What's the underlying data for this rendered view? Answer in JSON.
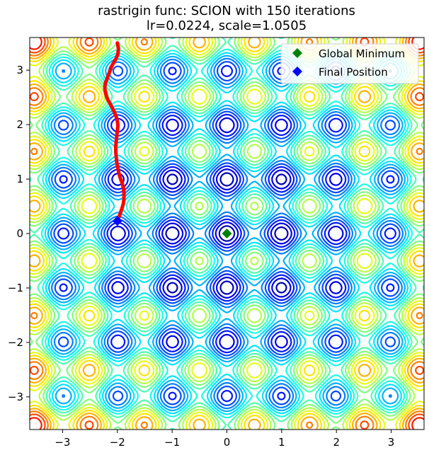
{
  "chart_data": {
    "type": "contour",
    "title_line1": "rastrigin func: SCION with 150 iterations",
    "title_line2": "lr=0.0224, scale=1.0505",
    "xlabel": "",
    "ylabel": "",
    "xlim": [
      -3.6,
      3.6
    ],
    "ylim": [
      -3.6,
      3.6
    ],
    "xticks": [
      -3,
      -2,
      -1,
      0,
      1,
      2,
      3
    ],
    "yticks": [
      -3,
      -2,
      -1,
      0,
      1,
      2,
      3
    ],
    "xtick_labels": [
      "−3",
      "−2",
      "−1",
      "0",
      "1",
      "2",
      "3"
    ],
    "ytick_labels": [
      "−3",
      "−2",
      "−1",
      "0",
      "1",
      "2",
      "3"
    ],
    "grid": false,
    "legend_position": "upper-right",
    "colormap": "jet",
    "function": "rastrigin",
    "path_color": "#ff0000",
    "path": [
      [
        -2.0,
        3.5
      ],
      [
        -1.98,
        3.4
      ],
      [
        -1.99,
        3.3
      ],
      [
        -2.02,
        3.22
      ],
      [
        -2.06,
        3.15
      ],
      [
        -2.1,
        3.08
      ],
      [
        -2.13,
        3.0
      ],
      [
        -2.16,
        2.92
      ],
      [
        -2.19,
        2.84
      ],
      [
        -2.22,
        2.76
      ],
      [
        -2.23,
        2.68
      ],
      [
        -2.22,
        2.6
      ],
      [
        -2.2,
        2.52
      ],
      [
        -2.17,
        2.45
      ],
      [
        -2.13,
        2.38
      ],
      [
        -2.09,
        2.3
      ],
      [
        -2.05,
        2.22
      ],
      [
        -2.02,
        2.14
      ],
      [
        -2.0,
        2.06
      ],
      [
        -1.99,
        1.98
      ],
      [
        -2.0,
        1.9
      ],
      [
        -2.01,
        1.8
      ],
      [
        -2.02,
        1.7
      ],
      [
        -2.03,
        1.6
      ],
      [
        -2.03,
        1.5
      ],
      [
        -2.02,
        1.4
      ],
      [
        -2.01,
        1.3
      ],
      [
        -1.99,
        1.2
      ],
      [
        -1.97,
        1.1
      ],
      [
        -1.94,
        1.0
      ],
      [
        -1.91,
        0.92
      ],
      [
        -1.89,
        0.84
      ],
      [
        -1.88,
        0.75
      ],
      [
        -1.88,
        0.65
      ],
      [
        -1.89,
        0.55
      ],
      [
        -1.92,
        0.45
      ],
      [
        -1.95,
        0.36
      ],
      [
        -1.98,
        0.28
      ],
      [
        -2.0,
        0.23
      ]
    ],
    "series": [
      {
        "name": "Global Minimum",
        "marker": "diamond",
        "color": "#008000",
        "x": 0.0,
        "y": 0.0
      },
      {
        "name": "Final Position",
        "marker": "diamond",
        "color": "#0000ff",
        "x": -2.0,
        "y": 0.23
      }
    ]
  }
}
